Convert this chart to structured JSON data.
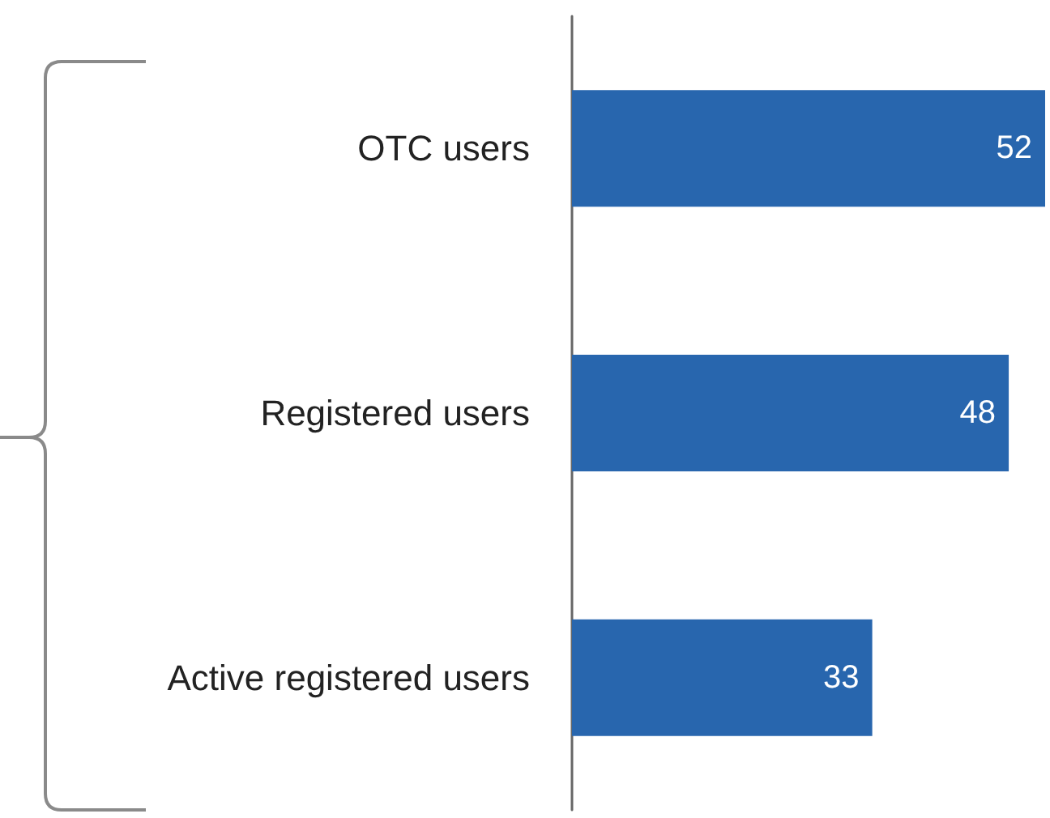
{
  "chart_data": {
    "type": "bar",
    "orientation": "horizontal",
    "categories": [
      "OTC users",
      "Registered users",
      "Active registered users"
    ],
    "values": [
      52,
      48,
      33
    ],
    "color": "#2866ae",
    "data_labels": true
  }
}
